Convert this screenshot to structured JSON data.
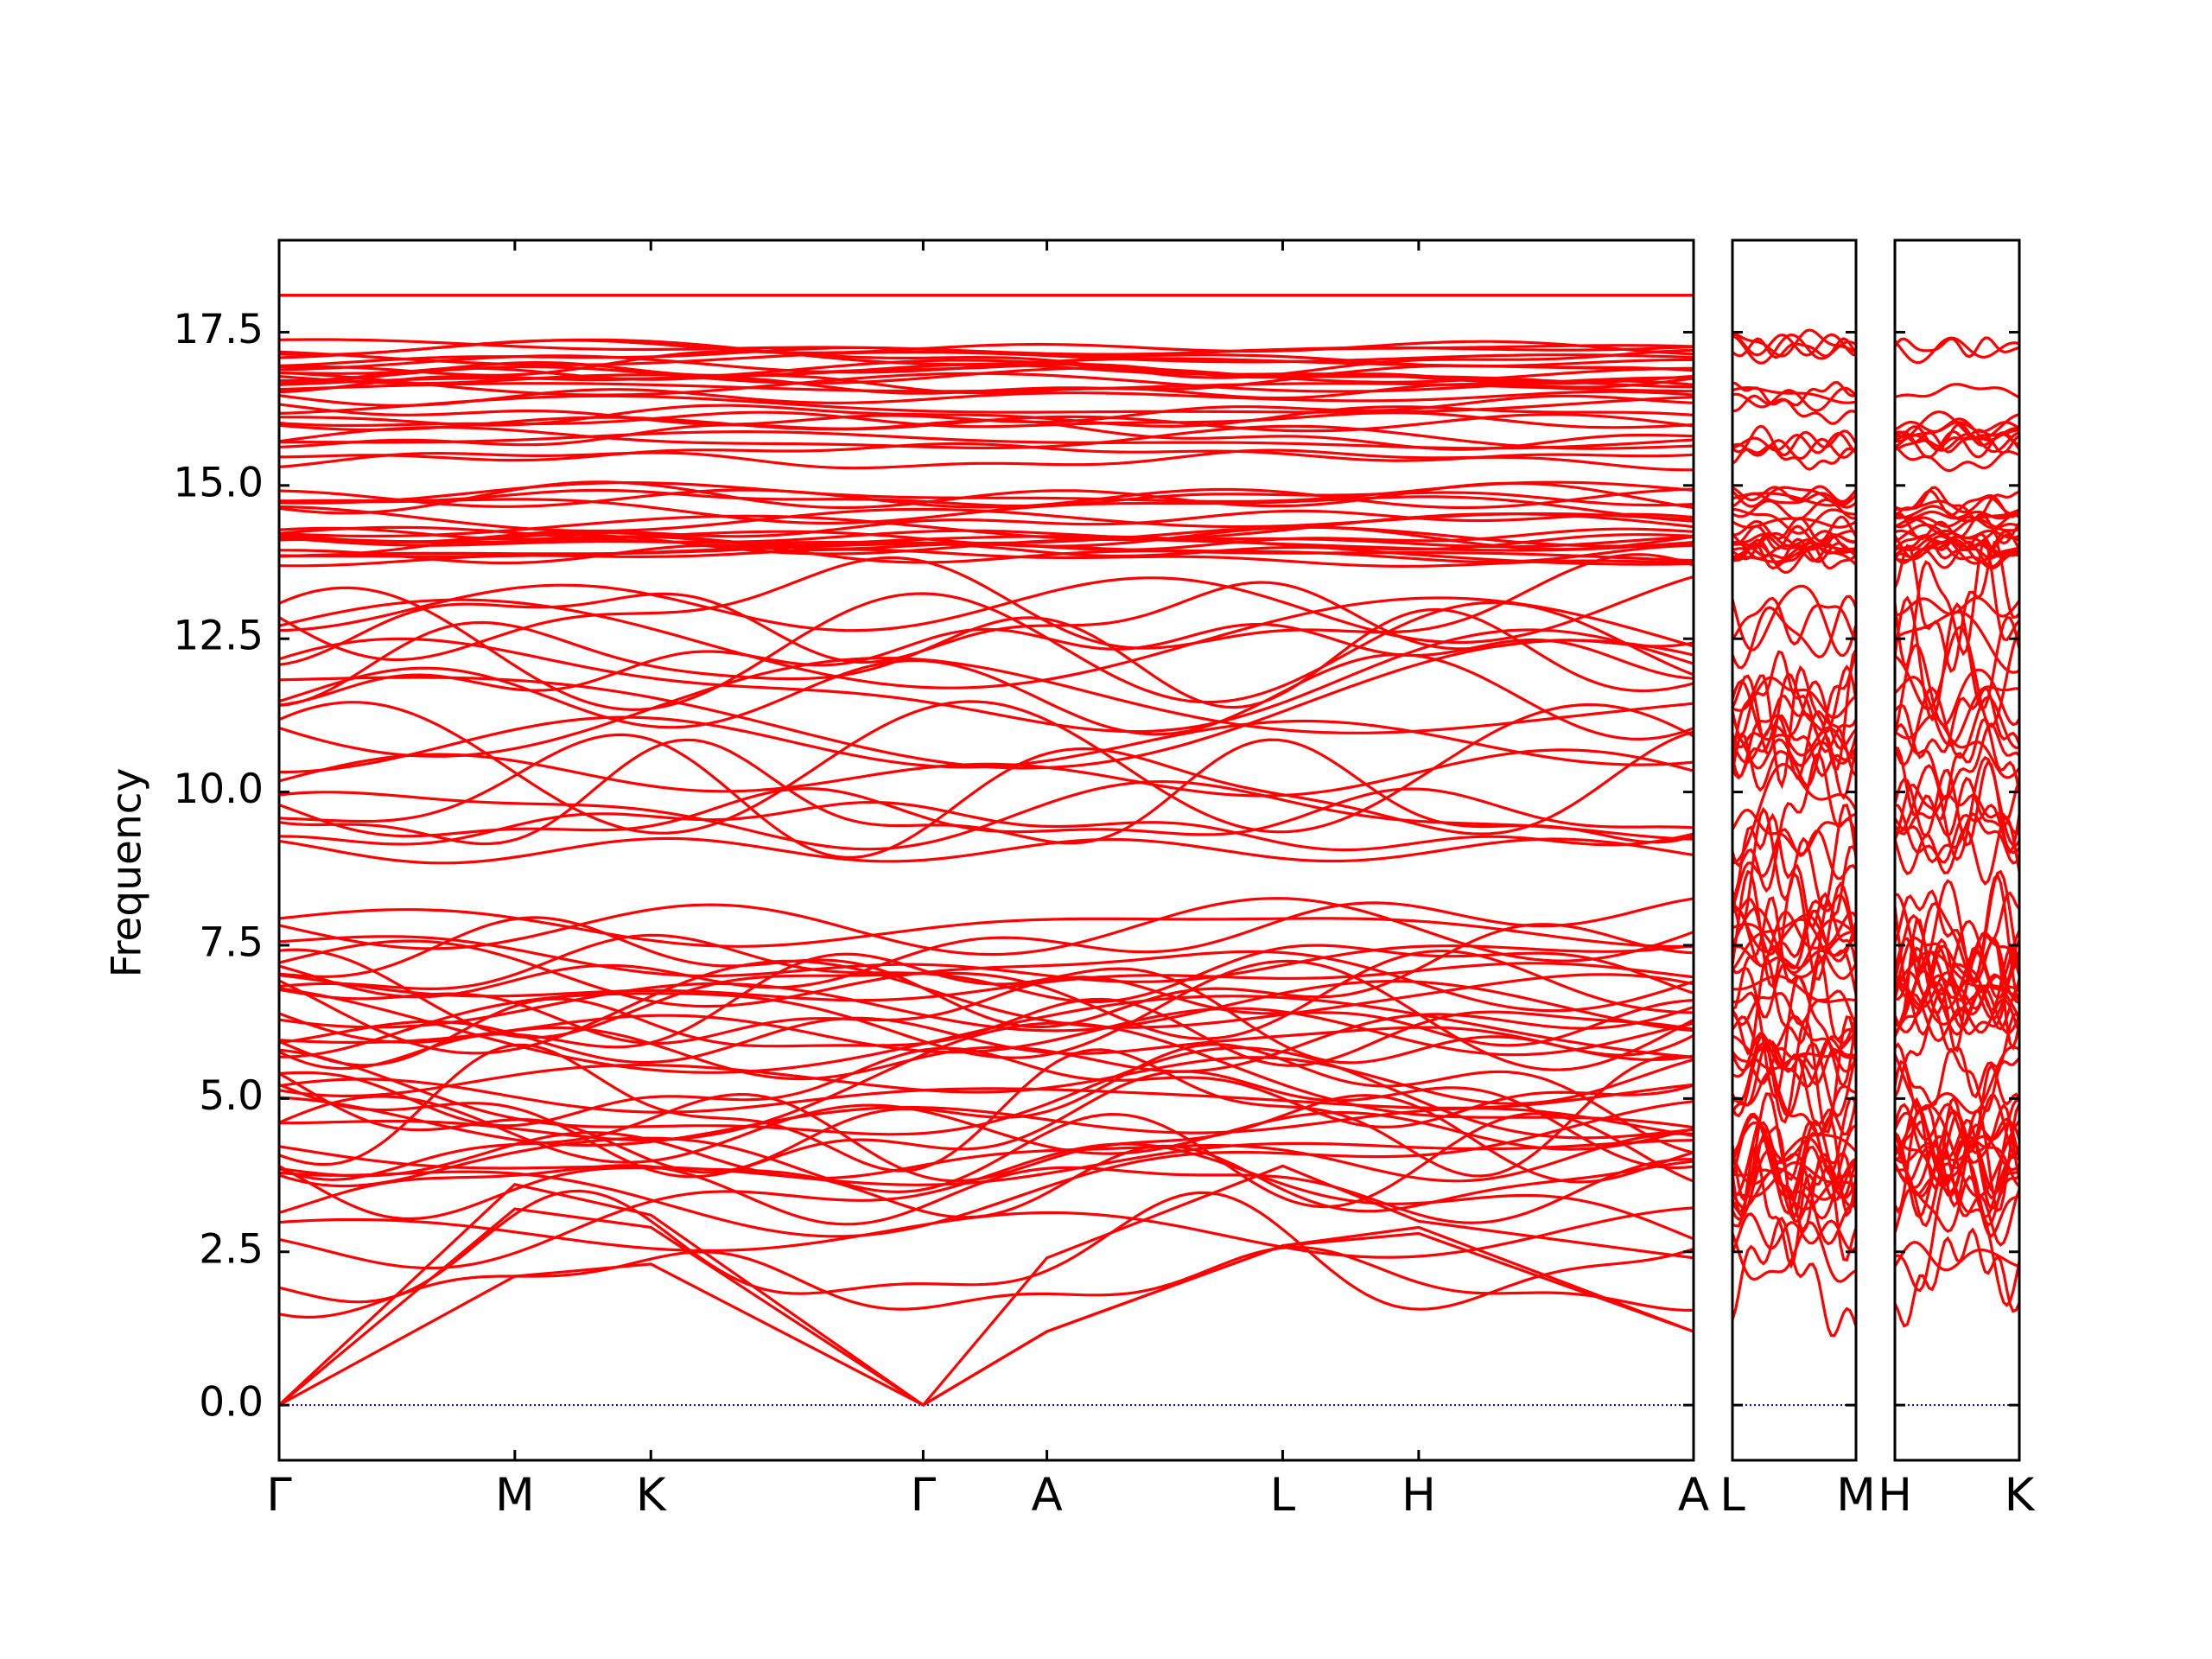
{
  "chart_data": {
    "type": "line",
    "ylabel": "Frequency",
    "ylim": [
      -0.9,
      19.0
    ],
    "yticks": [
      0.0,
      2.5,
      5.0,
      7.5,
      10.0,
      12.5,
      15.0,
      17.5
    ],
    "ytick_labels": [
      "0.0",
      "2.5",
      "5.0",
      "7.5",
      "10.0",
      "12.5",
      "15.0",
      "17.5"
    ],
    "grid": false,
    "legend": "none",
    "line_color": "#ff0000",
    "zero_line_color": "#0000cc",
    "panels": [
      {
        "name": "path-1",
        "labels": [
          "Γ",
          "M",
          "K",
          "Γ",
          "A",
          "L",
          "H",
          "A"
        ],
        "positions": [
          0,
          1,
          1.577,
          2.732,
          3.257,
          4.257,
          4.834,
          6.0
        ]
      },
      {
        "name": "path-2",
        "labels": [
          "L",
          "M"
        ],
        "positions": [
          0,
          0.525
        ]
      },
      {
        "name": "path-3",
        "labels": [
          "H",
          "K"
        ],
        "positions": [
          0,
          0.525
        ]
      }
    ],
    "branch_description": "Phonon band structure: dense set of red frequency branches from 0 to about 18.1 with three acoustic branches reaching 0.0 at Γ; flat bands clustered near 13.8-14.9 and 15.4-17.4, top band at about 18.1.",
    "acoustic_at_A": [
      1.2,
      1.2,
      2.4
    ],
    "acoustic_at_M": [
      2.1,
      3.2,
      3.6
    ],
    "acoustic_at_K": [
      2.3,
      2.9,
      3.1
    ],
    "acoustic_at_L": [
      2.6,
      2.6,
      3.9
    ],
    "acoustic_at_H": [
      2.8,
      2.9,
      3.0
    ],
    "top_band": 18.1,
    "upper_band_cluster": [
      15.4,
      17.4
    ],
    "middle_band_cluster": [
      13.8,
      14.9
    ]
  }
}
